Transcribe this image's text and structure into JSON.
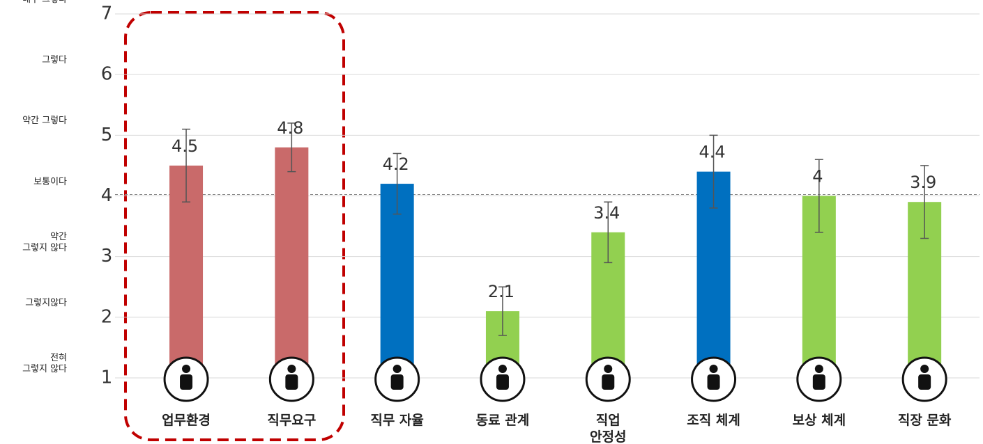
{
  "chart_data": {
    "type": "bar",
    "categories": [
      "업무환경",
      "직무요구",
      "직무 자율",
      "동료 관계",
      "직업\n안정성",
      "조직 체계",
      "보상 체계",
      "직장 문화"
    ],
    "values": [
      4.5,
      4.8,
      4.2,
      2.1,
      3.4,
      4.4,
      4,
      3.9
    ],
    "errors": [
      0.6,
      0.4,
      0.5,
      0.4,
      0.5,
      0.6,
      0.6,
      0.6
    ],
    "colors": [
      "#c96a6a",
      "#c96a6a",
      "#0070c0",
      "#92d050",
      "#92d050",
      "#0070c0",
      "#92d050",
      "#92d050"
    ],
    "ylim": [
      1,
      7
    ],
    "yticks": [
      1,
      2,
      3,
      4,
      5,
      6,
      7
    ],
    "scale_labels": [
      "전혀\n그렇지 않다",
      "그렇지않다",
      "약간\n그렇지 않다",
      "보통이다",
      "약간 그렇다",
      "그렇다",
      "매우 그렇다"
    ],
    "reference_line": 4,
    "grid": true
  }
}
